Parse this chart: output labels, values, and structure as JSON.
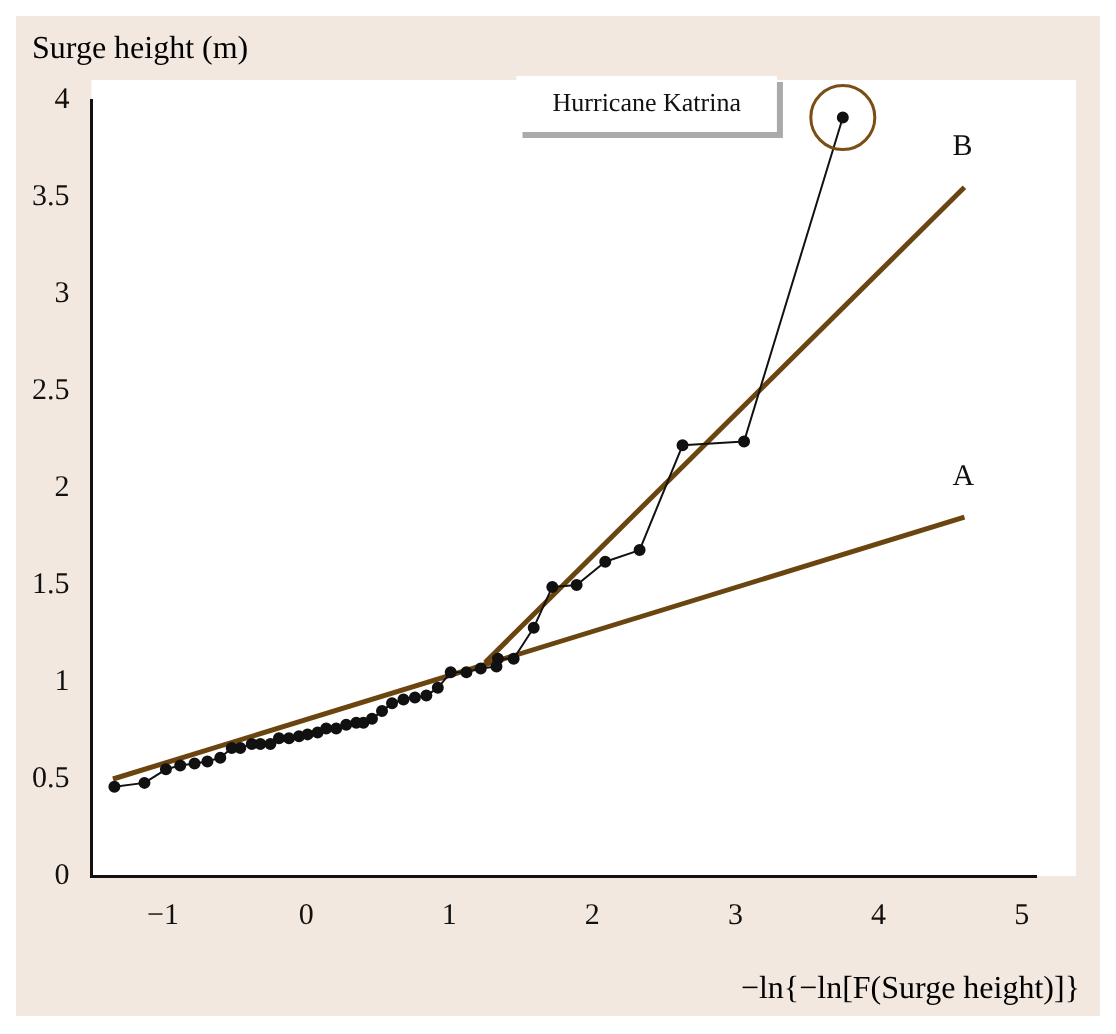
{
  "chart_data": {
    "type": "line",
    "xlabel": "−ln{−ln[F(Surge height)]}",
    "ylabel": "Surge height (m)",
    "xlim": [
      -1.5,
      5.1
    ],
    "xticks": [
      -1,
      0,
      1,
      2,
      3,
      4,
      5
    ],
    "ylim": [
      0,
      4
    ],
    "yticks": [
      0,
      0.5,
      1,
      1.5,
      2,
      2.5,
      3,
      3.5,
      4
    ],
    "grid": false,
    "legend": false,
    "annotations": [
      "Hurricane Katrina"
    ],
    "series": [
      {
        "color": "#111111",
        "marker": "circle",
        "x": [
          -1.34,
          -1.13,
          -0.98,
          -0.88,
          -0.78,
          -0.69,
          -0.6,
          -0.52,
          -0.46,
          -0.38,
          -0.32,
          -0.25,
          -0.19,
          -0.12,
          -0.05,
          0.01,
          0.08,
          0.14,
          0.21,
          0.28,
          0.35,
          0.4,
          0.46,
          0.53,
          0.6,
          0.68,
          0.76,
          0.84,
          0.92,
          1.01,
          1.12,
          1.22,
          1.33,
          1.34,
          1.45,
          1.59,
          1.72,
          1.89,
          2.09,
          2.33,
          2.63,
          3.06,
          3.75
        ],
        "values": [
          0.46,
          0.48,
          0.55,
          0.57,
          0.58,
          0.59,
          0.61,
          0.66,
          0.66,
          0.68,
          0.68,
          0.68,
          0.71,
          0.71,
          0.72,
          0.73,
          0.74,
          0.76,
          0.76,
          0.78,
          0.79,
          0.79,
          0.81,
          0.85,
          0.89,
          0.91,
          0.92,
          0.93,
          0.97,
          1.05,
          1.05,
          1.07,
          1.08,
          1.12,
          1.12,
          1.28,
          1.49,
          1.5,
          1.62,
          1.68,
          2.22,
          2.24,
          3.91
        ]
      },
      {
        "name": "A",
        "color": "#6b4510",
        "marker": "none",
        "x": [
          -1.35,
          4.6
        ],
        "values": [
          0.5,
          1.85
        ]
      },
      {
        "name": "B",
        "color": "#6b4510",
        "marker": "none",
        "x": [
          1.25,
          4.6
        ],
        "values": [
          1.1,
          3.55
        ]
      }
    ]
  }
}
